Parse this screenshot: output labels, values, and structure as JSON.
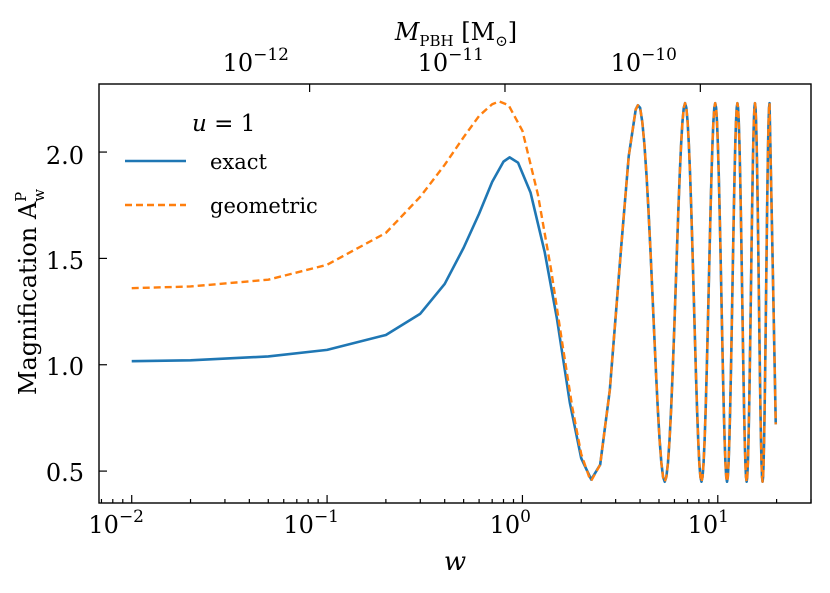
{
  "chart_data": {
    "type": "line",
    "xscale": "log",
    "xlim": [
      0.0068,
      30
    ],
    "ylim": [
      0.35,
      2.32
    ],
    "xlabel": "w",
    "ylabel": "Magnification A",
    "ylabel_sub": "w",
    "ylabel_sup": "P",
    "top_axis": {
      "label": "M",
      "label_sub": "PBH",
      "label_unit": "[M",
      "label_unit_sub": "⊙",
      "label_unit_close": "]",
      "ticks": [
        {
          "w": 0.0814,
          "base": "10",
          "exp": "−12"
        },
        {
          "w": 0.814,
          "base": "10",
          "exp": "−11"
        },
        {
          "w": 8.14,
          "base": "10",
          "exp": "−10"
        }
      ]
    },
    "xticks": [
      {
        "value": 0.01,
        "base": "10",
        "exp": "−2"
      },
      {
        "value": 0.1,
        "base": "10",
        "exp": "−1"
      },
      {
        "value": 1,
        "base": "10",
        "exp": "0"
      },
      {
        "value": 10,
        "base": "10",
        "exp": "1"
      }
    ],
    "yticks": [
      {
        "value": 0.5,
        "label": "0.5"
      },
      {
        "value": 1.0,
        "label": "1.0"
      },
      {
        "value": 1.5,
        "label": "1.5"
      },
      {
        "value": 2.0,
        "label": "2.0"
      }
    ],
    "legend": {
      "title_var": "u",
      "title_eq": " = 1",
      "position": "upper-left"
    },
    "series": [
      {
        "name": "exact",
        "color": "#1f77b4",
        "style": "solid",
        "points": [
          [
            0.01,
            1.017
          ],
          [
            0.02,
            1.021
          ],
          [
            0.05,
            1.039
          ],
          [
            0.1,
            1.07
          ],
          [
            0.2,
            1.14
          ],
          [
            0.3,
            1.24
          ],
          [
            0.4,
            1.38
          ],
          [
            0.5,
            1.55
          ],
          [
            0.6,
            1.71
          ],
          [
            0.7,
            1.86
          ],
          [
            0.8,
            1.955
          ],
          [
            0.86,
            1.975
          ],
          [
            0.95,
            1.95
          ],
          [
            1.1,
            1.81
          ],
          [
            1.3,
            1.53
          ],
          [
            1.5,
            1.22
          ],
          [
            1.75,
            0.82
          ],
          [
            2.0,
            0.56
          ],
          [
            2.25,
            0.46
          ],
          [
            2.5,
            0.53
          ],
          [
            2.8,
            0.88
          ],
          [
            3.2,
            1.55
          ],
          [
            3.5,
            1.98
          ],
          [
            3.8,
            2.2
          ],
          [
            3.9,
            2.22
          ]
        ]
      },
      {
        "name": "geometric",
        "color": "#ff7f0e",
        "style": "dashed",
        "points": [
          [
            0.01,
            1.36
          ],
          [
            0.02,
            1.368
          ],
          [
            0.05,
            1.4
          ],
          [
            0.1,
            1.47
          ],
          [
            0.2,
            1.62
          ],
          [
            0.3,
            1.79
          ],
          [
            0.4,
            1.94
          ],
          [
            0.5,
            2.07
          ],
          [
            0.6,
            2.17
          ],
          [
            0.7,
            2.225
          ],
          [
            0.76,
            2.238
          ],
          [
            0.85,
            2.22
          ],
          [
            1.0,
            2.1
          ],
          [
            1.2,
            1.8
          ],
          [
            1.4,
            1.45
          ],
          [
            1.6,
            1.1
          ],
          [
            1.8,
            0.8
          ],
          [
            2.0,
            0.58
          ],
          [
            2.2,
            0.47
          ],
          [
            2.25,
            0.455
          ],
          [
            2.5,
            0.53
          ],
          [
            2.8,
            0.88
          ],
          [
            3.2,
            1.55
          ],
          [
            3.5,
            1.98
          ],
          [
            3.8,
            2.2
          ],
          [
            3.9,
            2.22
          ]
        ]
      }
    ],
    "oscillation": {
      "description": "beyond w~3.9 both series overlap and oscillate between min and max",
      "min": 0.45,
      "max": 2.23,
      "extrema_w": [
        3.9,
        5.35,
        6.8,
        8.25,
        9.7,
        11.15,
        12.6,
        14.05,
        15.5,
        16.95,
        18.4
      ],
      "end_w": 19.8,
      "end_value": 0.72
    }
  }
}
